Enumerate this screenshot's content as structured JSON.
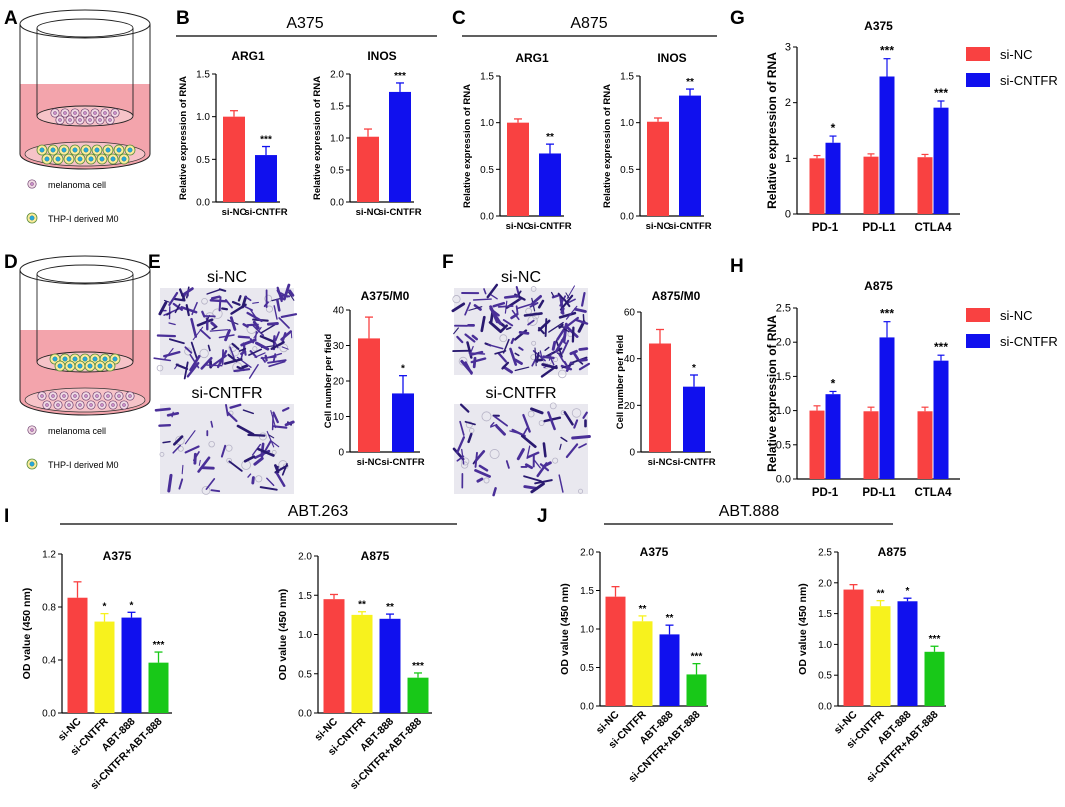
{
  "palette": {
    "red": "#f94141",
    "blue": "#1010ee",
    "yellow": "#f7f21d",
    "green": "#18c818",
    "stain": "#4a2f98",
    "pink": "#f3a4ac"
  },
  "schematics": [
    {
      "letter": "A",
      "mode": "coculture",
      "legend": [
        "melanoma cell",
        "THP-I derived M0"
      ]
    },
    {
      "letter": "D",
      "mode": "transwell",
      "legend": [
        "melanoma cell",
        "THP-I derived M0"
      ]
    }
  ],
  "group_titles": [
    {
      "letter": "B",
      "text": "A375"
    },
    {
      "letter": "C",
      "text": "A875"
    },
    {
      "letter": "I",
      "text": "ABT.263"
    },
    {
      "letter": "J",
      "text": "ABT.888"
    }
  ],
  "micrographs": [
    {
      "letter": "E",
      "top_label": "si-NC",
      "bottom_label": "si-CNTFR",
      "top_density": "dense",
      "bottom_density": "sparse"
    },
    {
      "letter": "F",
      "top_label": "si-NC",
      "bottom_label": "si-CNTFR",
      "top_density": "dense",
      "bottom_density": "sparse"
    }
  ],
  "chart_data": [
    {
      "id": "B1",
      "type": "bar",
      "title": "ARG1",
      "ylabel": "Relative expression of RNA",
      "ylim": [
        0,
        1.5
      ],
      "yticks": [
        "0.0",
        "0.5",
        "1.0",
        "1.5"
      ],
      "categories": [
        "si-NC",
        "si-CNTFR"
      ],
      "values": [
        1.0,
        0.55
      ],
      "errors": [
        0.07,
        0.1
      ],
      "colors": [
        "red",
        "blue"
      ],
      "sig": [
        "",
        "***"
      ]
    },
    {
      "id": "B2",
      "type": "bar",
      "title": "INOS",
      "ylabel": "Relative expression of RNA",
      "ylim": [
        0,
        2.0
      ],
      "yticks": [
        "0.0",
        "0.5",
        "1.0",
        "1.5",
        "2.0"
      ],
      "categories": [
        "si-NC",
        "si-CNTFR"
      ],
      "values": [
        1.02,
        1.72
      ],
      "errors": [
        0.12,
        0.14
      ],
      "colors": [
        "red",
        "blue"
      ],
      "sig": [
        "",
        "***"
      ]
    },
    {
      "id": "C1",
      "type": "bar",
      "title": "ARG1",
      "ylabel": "Relative expression of RNA",
      "ylim": [
        0,
        1.5
      ],
      "yticks": [
        "0.0",
        "0.5",
        "1.0",
        "1.5"
      ],
      "categories": [
        "si-NC",
        "si-CNTFR"
      ],
      "values": [
        1.0,
        0.67
      ],
      "errors": [
        0.04,
        0.1
      ],
      "colors": [
        "red",
        "blue"
      ],
      "sig": [
        "",
        "**"
      ]
    },
    {
      "id": "C2",
      "type": "bar",
      "title": "INOS",
      "ylabel": "Relative expression of RNA",
      "ylim": [
        0,
        1.5
      ],
      "yticks": [
        "0.0",
        "0.5",
        "1.0",
        "1.5"
      ],
      "categories": [
        "si-NC",
        "si-CNTFR"
      ],
      "values": [
        1.01,
        1.29
      ],
      "errors": [
        0.04,
        0.07
      ],
      "colors": [
        "red",
        "blue"
      ],
      "sig": [
        "",
        "**"
      ]
    },
    {
      "id": "G",
      "type": "grouped-bar",
      "title": "A375",
      "ylabel": "Relative expression of RNA",
      "ylim": [
        0,
        3
      ],
      "yticks": [
        "0",
        "1",
        "2",
        "3"
      ],
      "categories": [
        "PD-1",
        "PD-L1",
        "CTLA4"
      ],
      "legend": [
        "si-NC",
        "si-CNTFR"
      ],
      "series": [
        {
          "name": "si-NC",
          "color": "red",
          "values": [
            1.0,
            1.03,
            1.02
          ],
          "errors": [
            0.05,
            0.05,
            0.05
          ]
        },
        {
          "name": "si-CNTFR",
          "color": "blue",
          "values": [
            1.28,
            2.47,
            1.91
          ],
          "errors": [
            0.12,
            0.32,
            0.12
          ]
        }
      ],
      "sig": [
        "*",
        "***",
        "***"
      ]
    },
    {
      "id": "E",
      "type": "bar",
      "title": "A375/M0",
      "ylabel": "Cell number per field",
      "ylim": [
        0,
        40
      ],
      "yticks": [
        "0",
        "10",
        "20",
        "30",
        "40"
      ],
      "categories": [
        "si-NC",
        "si-CNTFR"
      ],
      "values": [
        32,
        16.5
      ],
      "errors": [
        6,
        5
      ],
      "colors": [
        "red",
        "blue"
      ],
      "sig": [
        "",
        "*"
      ]
    },
    {
      "id": "F",
      "type": "bar",
      "title": "A875/M0",
      "ylabel": "Cell number per field",
      "ylim": [
        0,
        60
      ],
      "yticks": [
        "0",
        "20",
        "40",
        "60"
      ],
      "categories": [
        "si-NC",
        "si-CNTFR"
      ],
      "values": [
        46.5,
        28
      ],
      "errors": [
        6,
        5
      ],
      "colors": [
        "red",
        "blue"
      ],
      "sig": [
        "",
        "*"
      ]
    },
    {
      "id": "H",
      "type": "grouped-bar",
      "title": "A875",
      "ylabel": "Relative expression of RNA",
      "ylim": [
        0,
        2.5
      ],
      "yticks": [
        "0.0",
        "0.5",
        "1.0",
        "1.5",
        "2.0",
        "2.5"
      ],
      "categories": [
        "PD-1",
        "PD-L1",
        "CTLA4"
      ],
      "legend": [
        "si-NC",
        "si-CNTFR"
      ],
      "series": [
        {
          "name": "si-NC",
          "color": "red",
          "values": [
            1.0,
            0.99,
            0.99
          ],
          "errors": [
            0.07,
            0.06,
            0.06
          ]
        },
        {
          "name": "si-CNTFR",
          "color": "blue",
          "values": [
            1.24,
            2.07,
            1.73
          ],
          "errors": [
            0.04,
            0.23,
            0.08
          ]
        }
      ],
      "sig": [
        "*",
        "***",
        "***"
      ]
    },
    {
      "id": "I1",
      "type": "bar",
      "title": "A375",
      "ylabel": "OD value (450 nm)",
      "ylim": [
        0,
        1.2
      ],
      "yticks": [
        "0.0",
        "0.4",
        "0.8",
        "1.2"
      ],
      "categories": [
        "si-NC",
        "si-CNTFR",
        "ABT-888",
        "si-CNTFR+ABT-888"
      ],
      "values": [
        0.87,
        0.69,
        0.72,
        0.38
      ],
      "errors": [
        0.12,
        0.06,
        0.04,
        0.08
      ],
      "colors": [
        "red",
        "yellow",
        "blue",
        "green"
      ],
      "sig": [
        "",
        "*",
        "*",
        "***"
      ]
    },
    {
      "id": "I2",
      "type": "bar",
      "title": "A875",
      "ylabel": "OD value (450 nm)",
      "ylim": [
        0,
        2.0
      ],
      "yticks": [
        "0.0",
        "0.5",
        "1.0",
        "1.5",
        "2.0"
      ],
      "categories": [
        "si-NC",
        "si-CNTFR",
        "ABT-888",
        "si-CNTFR+ABT-888"
      ],
      "values": [
        1.45,
        1.25,
        1.2,
        0.45
      ],
      "errors": [
        0.06,
        0.04,
        0.06,
        0.06
      ],
      "colors": [
        "red",
        "yellow",
        "blue",
        "green"
      ],
      "sig": [
        "",
        "**",
        "**",
        "***"
      ]
    },
    {
      "id": "J1",
      "type": "bar",
      "title": "A375",
      "ylabel": "OD value (450 nm)",
      "ylim": [
        0,
        2.0
      ],
      "yticks": [
        "0.0",
        "0.5",
        "1.0",
        "1.5",
        "2.0"
      ],
      "categories": [
        "si-NC",
        "si-CNTFR",
        "ABT-888",
        "si-CNTFR+ABT-888"
      ],
      "values": [
        1.42,
        1.1,
        0.93,
        0.41
      ],
      "errors": [
        0.13,
        0.07,
        0.12,
        0.14
      ],
      "colors": [
        "red",
        "yellow",
        "blue",
        "green"
      ],
      "sig": [
        "",
        "**",
        "**",
        "***"
      ]
    },
    {
      "id": "J2",
      "type": "bar",
      "title": "A875",
      "ylabel": "OD value (450 nm)",
      "ylim": [
        0,
        2.5
      ],
      "yticks": [
        "0.0",
        "0.5",
        "1.0",
        "1.5",
        "2.0",
        "2.5"
      ],
      "categories": [
        "si-NC",
        "si-CNTFR",
        "ABT-888",
        "si-CNTFR+ABT-888"
      ],
      "values": [
        1.89,
        1.62,
        1.7,
        0.88
      ],
      "errors": [
        0.08,
        0.09,
        0.05,
        0.09
      ],
      "colors": [
        "red",
        "yellow",
        "blue",
        "green"
      ],
      "sig": [
        "",
        "**",
        "*",
        "***"
      ]
    }
  ]
}
